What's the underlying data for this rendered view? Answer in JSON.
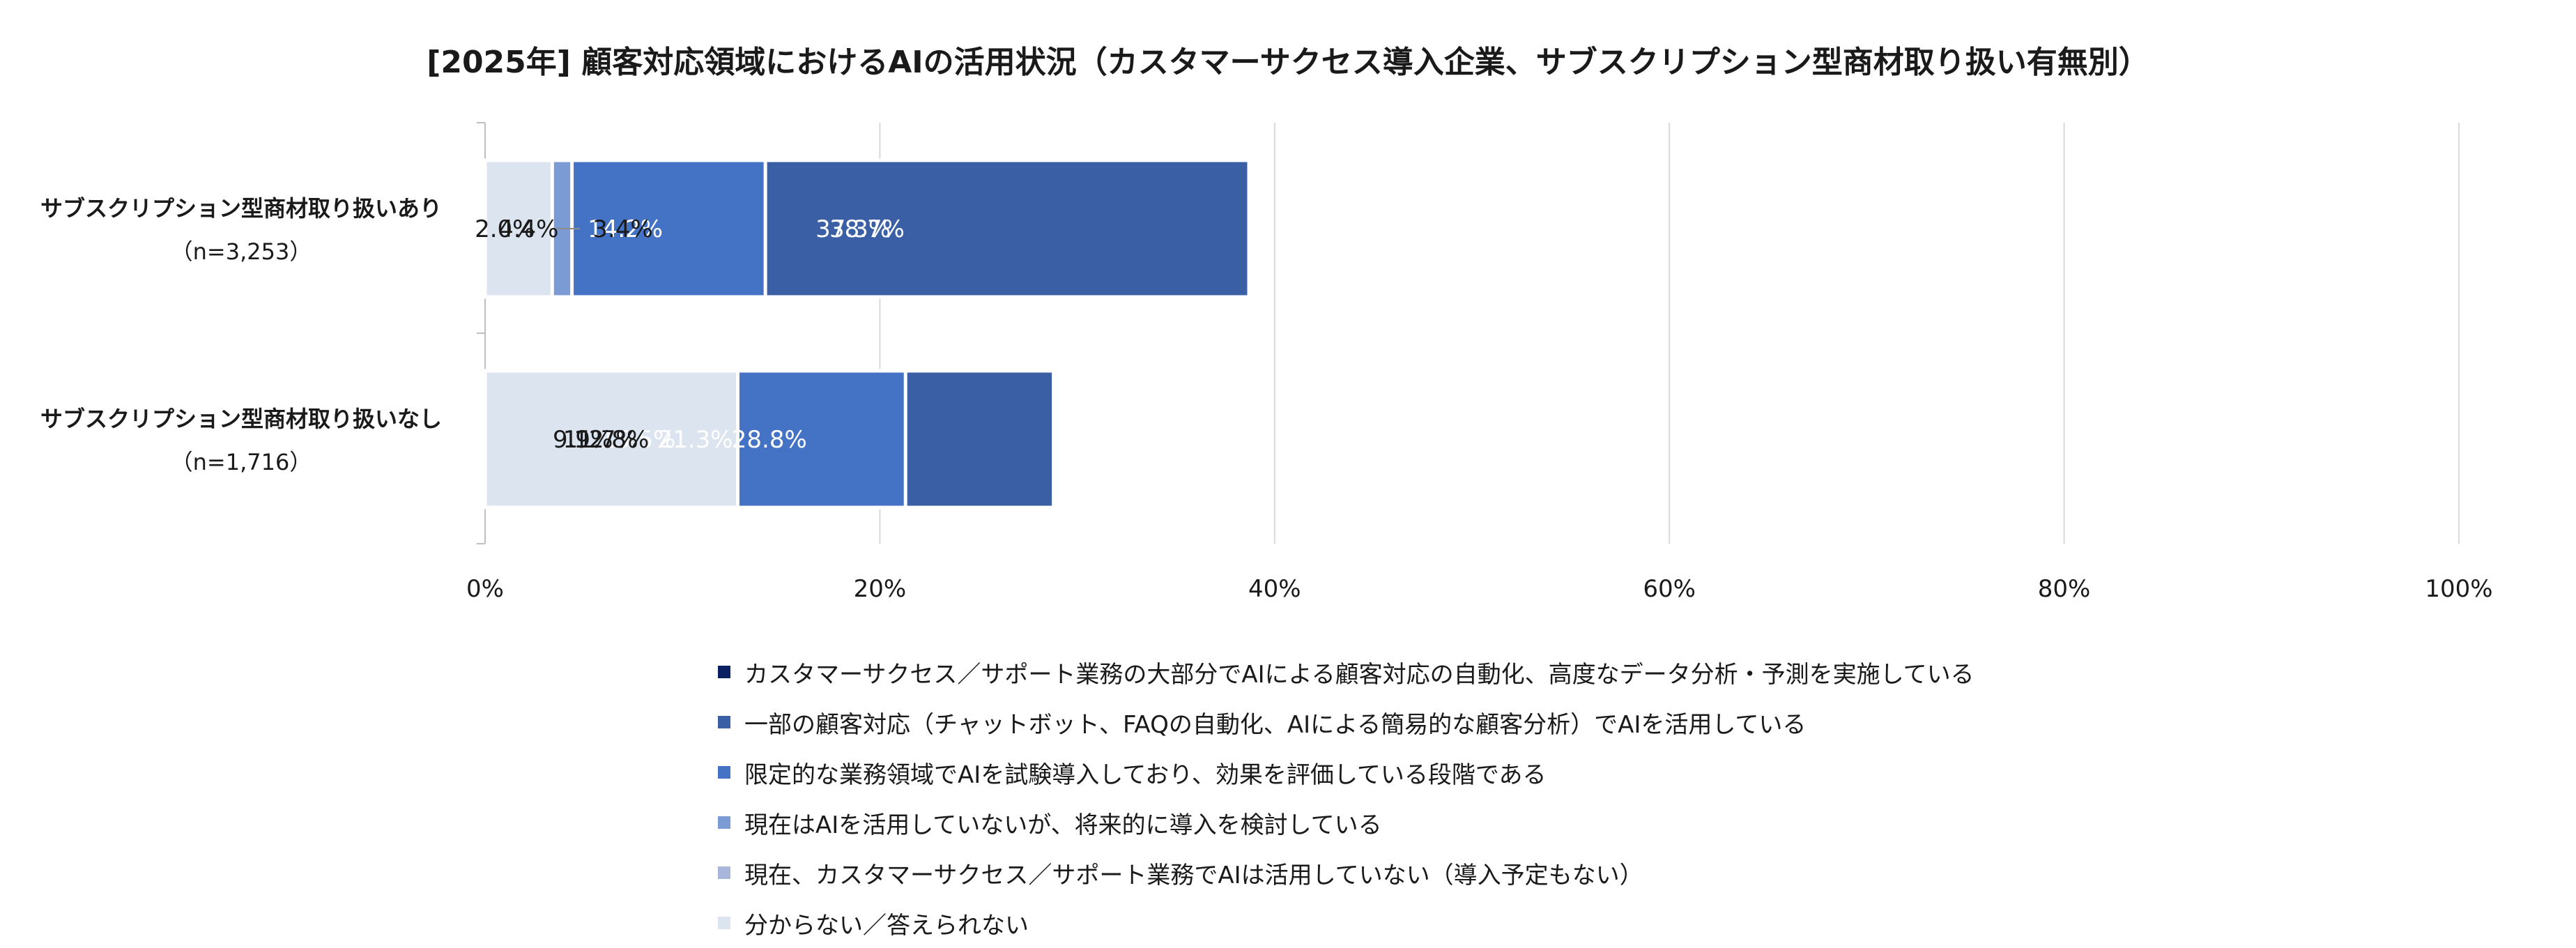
{
  "chart_data": {
    "type": "bar",
    "orientation": "horizontal",
    "stacked": true,
    "title": "[2025年] 顧客対応領域におけるAIの活用状況（カスタマーサクセス導入企業、サブスクリプション型商材取り扱い有無別）",
    "categories": [
      {
        "name": "サブスクリプション型商材取り扱いあり",
        "n": "（n=3,253）"
      },
      {
        "name": "サブスクリプション型商材取り扱いなし",
        "n": "（n=1,716）"
      }
    ],
    "series": [
      {
        "name": "カスタマーサクセス／サポート業務の大部分でAIによる顧客対応の自動化、高度なデータ分析・予測を実施している",
        "color": "#0b2060",
        "label_color": "#ffffff",
        "values": [
          37.3,
          15.5
        ]
      },
      {
        "name": "一部の顧客対応（チャットボット、FAQの自動化、AIによる簡易的な顧客分析）でAIを活用している",
        "color": "#3a5fa5",
        "label_color": "#ffffff",
        "values": [
          38.7,
          28.8
        ]
      },
      {
        "name": "限定的な業務領域でAIを試験導入しており、効果を評価している段階である",
        "color": "#4472c4",
        "label_color": "#ffffff",
        "values": [
          14.2,
          21.3
        ]
      },
      {
        "name": "現在はAIを活用していないが、将来的に導入を検討している",
        "color": "#7b9bd5",
        "label_color": "#1a1a1a",
        "values": [
          4.4,
          11.7
        ]
      },
      {
        "name": "現在、カスタマーサクセス／サポート業務でAIは活用していない（導入予定もない）",
        "color": "#a8b6dc",
        "label_color": "#1a1a1a",
        "values": [
          2.0,
          9.9
        ]
      },
      {
        "name": "分からない／答えられない",
        "color": "#dce4f0",
        "label_color": "#1a1a1a",
        "values": [
          3.4,
          12.8
        ]
      }
    ],
    "data_labels": [
      [
        "37.3%",
        "38.7%",
        "14.2%",
        "4.4%",
        "2.0%",
        "3.4%"
      ],
      [
        "15.5%",
        "28.8%",
        "21.3%",
        "11.7%",
        "9.9%",
        "12.8%"
      ]
    ],
    "xlim": [
      0,
      100
    ],
    "xticks": [
      0,
      20,
      40,
      60,
      80,
      100
    ],
    "xtick_labels": [
      "0%",
      "20%",
      "40%",
      "60%",
      "80%",
      "100%"
    ],
    "grid": true,
    "legend_position": "bottom"
  }
}
